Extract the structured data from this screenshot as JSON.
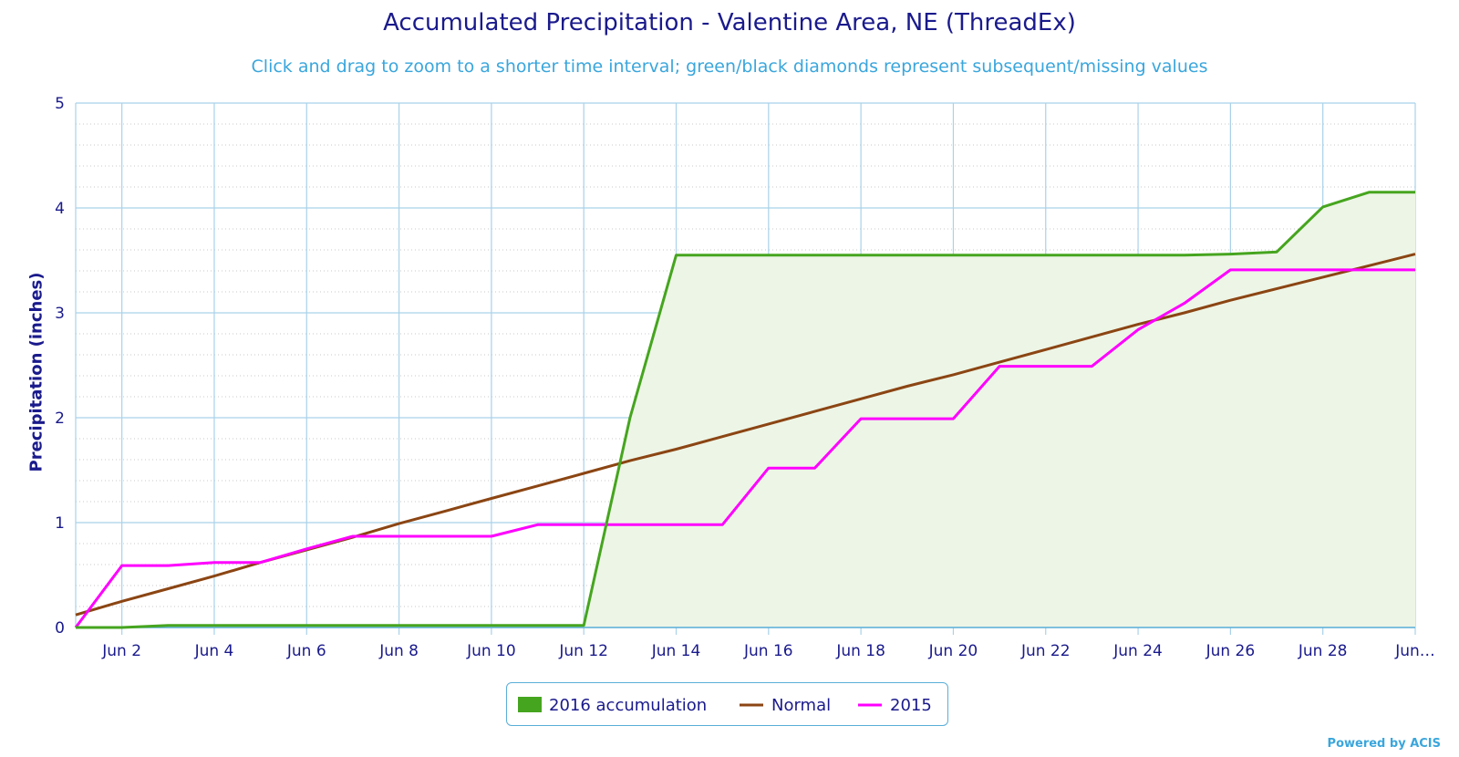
{
  "title": "Accumulated Precipitation - Valentine Area, NE (ThreadEx)",
  "subtitle": "Click and drag to zoom to a shorter time interval; green/black diamonds represent subsequent/missing values",
  "credit": "Powered by ACIS",
  "colors": {
    "title": "#1a1a8c",
    "subtitle": "#3aa6dc",
    "grid": "#a9d2ea",
    "minor_grid": "#c8c8c8",
    "area_fill": "#edf5e6",
    "accum2016": "#46a51f",
    "normal": "#8b4513",
    "y2015": "#ff00ff"
  },
  "chart_data": {
    "type": "line",
    "title": "Accumulated Precipitation - Valentine Area, NE (ThreadEx)",
    "xlabel": "",
    "ylabel": "Precipitation (inches)",
    "ylim": [
      0,
      5
    ],
    "yticks": [
      "0",
      "1",
      "2",
      "3",
      "4",
      "5"
    ],
    "x_tick_labels": [
      "Jun 2",
      "Jun 4",
      "Jun 6",
      "Jun 8",
      "Jun 10",
      "Jun 12",
      "Jun 14",
      "Jun 16",
      "Jun 18",
      "Jun 20",
      "Jun 22",
      "Jun 24",
      "Jun 26",
      "Jun 28",
      "Jun…"
    ],
    "x": [
      "Jun 1",
      "Jun 2",
      "Jun 3",
      "Jun 4",
      "Jun 5",
      "Jun 6",
      "Jun 7",
      "Jun 8",
      "Jun 9",
      "Jun 10",
      "Jun 11",
      "Jun 12",
      "Jun 13",
      "Jun 14",
      "Jun 15",
      "Jun 16",
      "Jun 17",
      "Jun 18",
      "Jun 19",
      "Jun 20",
      "Jun 21",
      "Jun 22",
      "Jun 23",
      "Jun 24",
      "Jun 25",
      "Jun 26",
      "Jun 27",
      "Jun 28",
      "Jun 29",
      "Jun 30"
    ],
    "grid": true,
    "legend_position": "bottom-center",
    "series": [
      {
        "name": "2016 accumulation",
        "style": "area",
        "values": [
          0,
          0,
          0.02,
          0.02,
          0.02,
          0.02,
          0.02,
          0.02,
          0.02,
          0.02,
          0.02,
          0.02,
          2.0,
          3.55,
          3.55,
          3.55,
          3.55,
          3.55,
          3.55,
          3.55,
          3.55,
          3.55,
          3.55,
          3.55,
          3.55,
          3.56,
          3.58,
          4.01,
          4.15,
          4.15
        ]
      },
      {
        "name": "Normal",
        "style": "line",
        "values": [
          0.12,
          0.25,
          0.37,
          0.49,
          0.62,
          0.74,
          0.86,
          0.99,
          1.11,
          1.23,
          1.35,
          1.47,
          1.59,
          1.7,
          1.82,
          1.94,
          2.06,
          2.18,
          2.3,
          2.41,
          2.53,
          2.65,
          2.77,
          2.89,
          3.0,
          3.12,
          3.23,
          3.34,
          3.45,
          3.56
        ]
      },
      {
        "name": "2015",
        "style": "line",
        "values": [
          0,
          0.59,
          0.59,
          0.62,
          0.62,
          0.75,
          0.87,
          0.87,
          0.87,
          0.87,
          0.98,
          0.98,
          0.98,
          0.98,
          0.98,
          1.52,
          1.52,
          1.99,
          1.99,
          1.99,
          2.49,
          2.49,
          2.49,
          2.84,
          3.09,
          3.41,
          3.41,
          3.41,
          3.41,
          3.41
        ]
      }
    ]
  }
}
